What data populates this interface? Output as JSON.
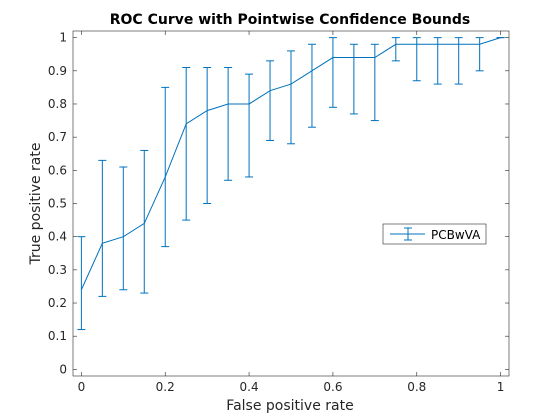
{
  "chart_data": {
    "type": "line",
    "title": "ROC Curve with Pointwise Confidence Bounds",
    "xlabel": "False positive rate",
    "ylabel": "True positive rate",
    "xlim": [
      0,
      1
    ],
    "ylim": [
      0,
      1
    ],
    "x_ticks": [
      "0",
      "0.2",
      "0.4",
      "0.6",
      "0.8",
      "1"
    ],
    "y_ticks": [
      "0",
      "0.1",
      "0.2",
      "0.3",
      "0.4",
      "0.5",
      "0.6",
      "0.7",
      "0.8",
      "0.9",
      "1"
    ],
    "x_tick_values": [
      0,
      0.2,
      0.4,
      0.6,
      0.8,
      1
    ],
    "y_tick_values": [
      0,
      0.1,
      0.2,
      0.3,
      0.4,
      0.5,
      0.6,
      0.7,
      0.8,
      0.9,
      1
    ],
    "grid": false,
    "legend_position": "right",
    "series": [
      {
        "name": "PCBwVA",
        "color": "#0072bd",
        "x": [
          0,
          0.05,
          0.1,
          0.15,
          0.2,
          0.25,
          0.3,
          0.35,
          0.4,
          0.45,
          0.5,
          0.55,
          0.6,
          0.65,
          0.7,
          0.75,
          0.8,
          0.85,
          0.9,
          0.95,
          1
        ],
        "y": [
          0.24,
          0.38,
          0.4,
          0.44,
          0.58,
          0.74,
          0.78,
          0.8,
          0.8,
          0.84,
          0.86,
          0.9,
          0.94,
          0.94,
          0.94,
          0.98,
          0.98,
          0.98,
          0.98,
          0.98,
          1.0
        ],
        "lower": [
          0.12,
          0.22,
          0.24,
          0.23,
          0.37,
          0.45,
          0.5,
          0.57,
          0.58,
          0.69,
          0.68,
          0.73,
          0.79,
          0.77,
          0.75,
          0.93,
          0.87,
          0.86,
          0.86,
          0.9,
          1.0
        ],
        "upper": [
          0.4,
          0.63,
          0.61,
          0.66,
          0.85,
          0.91,
          0.91,
          0.91,
          0.89,
          0.93,
          0.96,
          0.98,
          1.0,
          0.98,
          0.98,
          1.0,
          1.0,
          1.0,
          1.0,
          1.0,
          1.0
        ]
      }
    ]
  }
}
